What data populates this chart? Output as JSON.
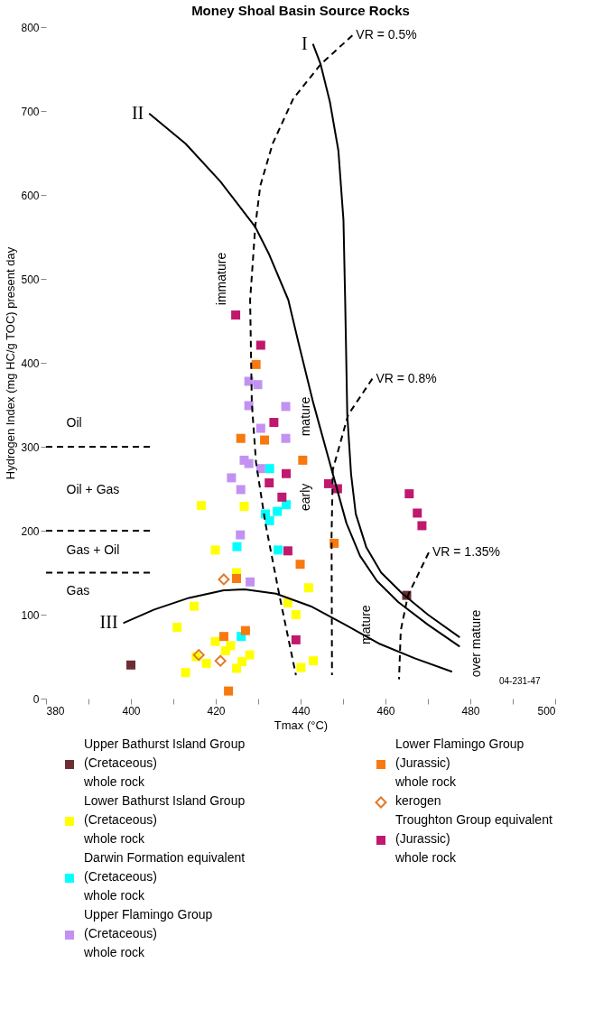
{
  "chart_data": {
    "type": "scatter",
    "title": "Money Shoal Basin Source Rocks",
    "xlabel": "Tmax (°C)",
    "ylabel": "Hydrogen Index (mg HC/g TOC) present day",
    "xlim": [
      380,
      500
    ],
    "ylim": [
      0,
      800
    ],
    "xticks": [
      380,
      {
        "value": 390,
        "label": null
      },
      400,
      {
        "value": 410,
        "label": null
      },
      420,
      {
        "value": 430,
        "label": null
      },
      440,
      {
        "value": 450,
        "label": null
      },
      460,
      {
        "value": 470,
        "label": null
      },
      480,
      {
        "value": 490,
        "label": null
      },
      500
    ],
    "yticks": [
      0,
      100,
      200,
      300,
      400,
      500,
      600,
      700,
      800
    ],
    "legend": "bottom",
    "series": [
      {
        "type": "scatter",
        "name": "Upper Bathurst Island Group\n(Cretaceous)\nwhole rock",
        "color": "#6b2f33",
        "marker": "square",
        "x": [
          400,
          465
        ],
        "values": [
          40,
          123
        ]
      },
      {
        "type": "scatter",
        "name": "Lower Bathurst Island Group\n(Cretaceous)\nwhole rock",
        "color": "#ffff00",
        "marker": "square",
        "x": [
          419.9,
          424.9,
          414.9,
          410.9,
          419.9,
          423.5,
          422.3,
          415.4,
          417.8,
          412.9,
          424.9,
          426.2,
          428,
          437,
          438.9,
          441.9,
          440.1,
          443,
          426.7,
          416.6
        ],
        "values": [
          177,
          150,
          110,
          85,
          68,
          63,
          57,
          50,
          42,
          31,
          36,
          44,
          52,
          114,
          100,
          132,
          37,
          45,
          229,
          230
        ]
      },
      {
        "type": "scatter",
        "name": "Darwin Formation equivalent\n(Cretaceous)\nwhole rock",
        "color": "#00ffff",
        "marker": "square",
        "x": [
          425,
          426,
          434.7,
          432.7,
          431.7,
          432.7,
          434.5,
          436.6
        ],
        "values": [
          181,
          74,
          177,
          274,
          220,
          212,
          223,
          231
        ]
      },
      {
        "type": "scatter",
        "name": "Upper Flamingo Group\n(Cretaceous)\nwhole rock",
        "color": "#c292f2",
        "marker": "square",
        "x": [
          427.8,
          429.9,
          427.8,
          436.5,
          430.6,
          436.5,
          426.7,
          427.8,
          430.6,
          423.7,
          425.9,
          425.8,
          428.1
        ],
        "values": [
          378,
          374,
          349,
          348,
          322,
          310,
          284,
          280,
          274,
          263,
          249,
          195,
          139
        ]
      },
      {
        "type": "scatter",
        "name": "Lower Flamingo Group\n(Jurassic)\nwhole rock",
        "color": "#f7790f",
        "marker": "square",
        "x": [
          429.5,
          425.9,
          431.5,
          440.5,
          447.9,
          439.9,
          424.9,
          421.9,
          427,
          423
        ],
        "values": [
          398,
          310,
          308,
          284,
          185,
          160,
          143,
          74,
          81,
          9
        ]
      },
      {
        "type": "scatter",
        "name": "kerogen",
        "color": "#e07a2a",
        "marker": "diamond",
        "x": [
          421.9,
          416,
          421.1
        ],
        "values": [
          142,
          52,
          45
        ]
      },
      {
        "type": "scatter",
        "name": "Troughton Group equivalent\n(Jurassic)\nwhole rock",
        "color": "#c0186e",
        "marker": "square",
        "x": [
          424.7,
          430.6,
          433.7,
          432.6,
          435.6,
          436.6,
          446.6,
          448.7,
          465.6,
          467.5,
          468.6,
          437,
          438.9
        ],
        "values": [
          457,
          421,
          329,
          257,
          240,
          268,
          256,
          250,
          244,
          221,
          206,
          176,
          70
        ]
      },
      {
        "type": "line",
        "name": "I",
        "color": "#000000",
        "line_style": "solid",
        "x": [
          442.9,
          444.7,
          446.9,
          448.9,
          450.1,
          450.5,
          451,
          451.9,
          453,
          455.5,
          459,
          464,
          470,
          477.5
        ],
        "values": [
          780,
          756,
          711,
          653,
          570,
          475,
          338,
          267,
          220,
          180,
          150,
          125,
          100,
          73
        ]
      },
      {
        "type": "line",
        "name": "II",
        "color": "#000000",
        "line_style": "solid",
        "x": [
          404.3,
          412.9,
          421.1,
          429.3,
          432.6,
          437.1,
          439.5,
          443,
          447.3,
          450.8,
          454,
          458,
          463,
          470,
          477.5
        ],
        "values": [
          697,
          661,
          616,
          562,
          529,
          475,
          424,
          352,
          273,
          209,
          170,
          140,
          115,
          88,
          62
        ]
      },
      {
        "type": "line",
        "name": "III",
        "color": "#000000",
        "line_style": "solid",
        "x": [
          398.2,
          405.5,
          413.7,
          421.9,
          426.8,
          434.2,
          442.4,
          450.5,
          458.7,
          466.9,
          475.7
        ],
        "values": [
          90,
          106,
          120,
          129,
          130,
          125,
          110,
          88,
          65,
          48,
          32
        ]
      },
      {
        "type": "line",
        "name": "VR = 0.5%",
        "color": "#000000",
        "line_style": "dashed",
        "x": [
          452.2,
          444.8,
          438.3,
          433.4,
          430.5,
          429.3,
          428.4,
          428.1,
          428.5,
          429.5,
          431.7,
          435,
          438.9
        ],
        "values": [
          790,
          756,
          715,
          661,
          611,
          562,
          496,
          475,
          352,
          281,
          209,
          123,
          28
        ]
      },
      {
        "type": "line",
        "name": "VR = 0.8%",
        "color": "#000000",
        "line_style": "dashed",
        "x": [
          456.9,
          451.2,
          447.6,
          447.3,
          447.4
        ],
        "values": [
          381,
          338,
          273,
          195,
          28
        ]
      },
      {
        "type": "line",
        "name": "VR = 1.35%",
        "color": "#000000",
        "line_style": "dashed",
        "x": [
          470.2,
          465.3,
          463.6,
          463.2
        ],
        "values": [
          174,
          123,
          81,
          23
        ]
      },
      {
        "type": "line",
        "color": "#000000",
        "line_style": "dashed",
        "x": [
          380,
          405
        ],
        "values": [
          300,
          300
        ]
      },
      {
        "type": "line",
        "color": "#000000",
        "line_style": "dashed",
        "x": [
          380,
          405
        ],
        "values": [
          200,
          200
        ]
      },
      {
        "type": "line",
        "color": "#000000",
        "line_style": "dashed",
        "x": [
          380,
          405
        ],
        "values": [
          150,
          150
        ]
      }
    ],
    "annotations": [
      "Oil",
      "Oil + Gas",
      "Gas + Oil",
      "Gas",
      "immature",
      "mature",
      "early",
      "mature",
      "over mature",
      "04-231-47"
    ]
  }
}
